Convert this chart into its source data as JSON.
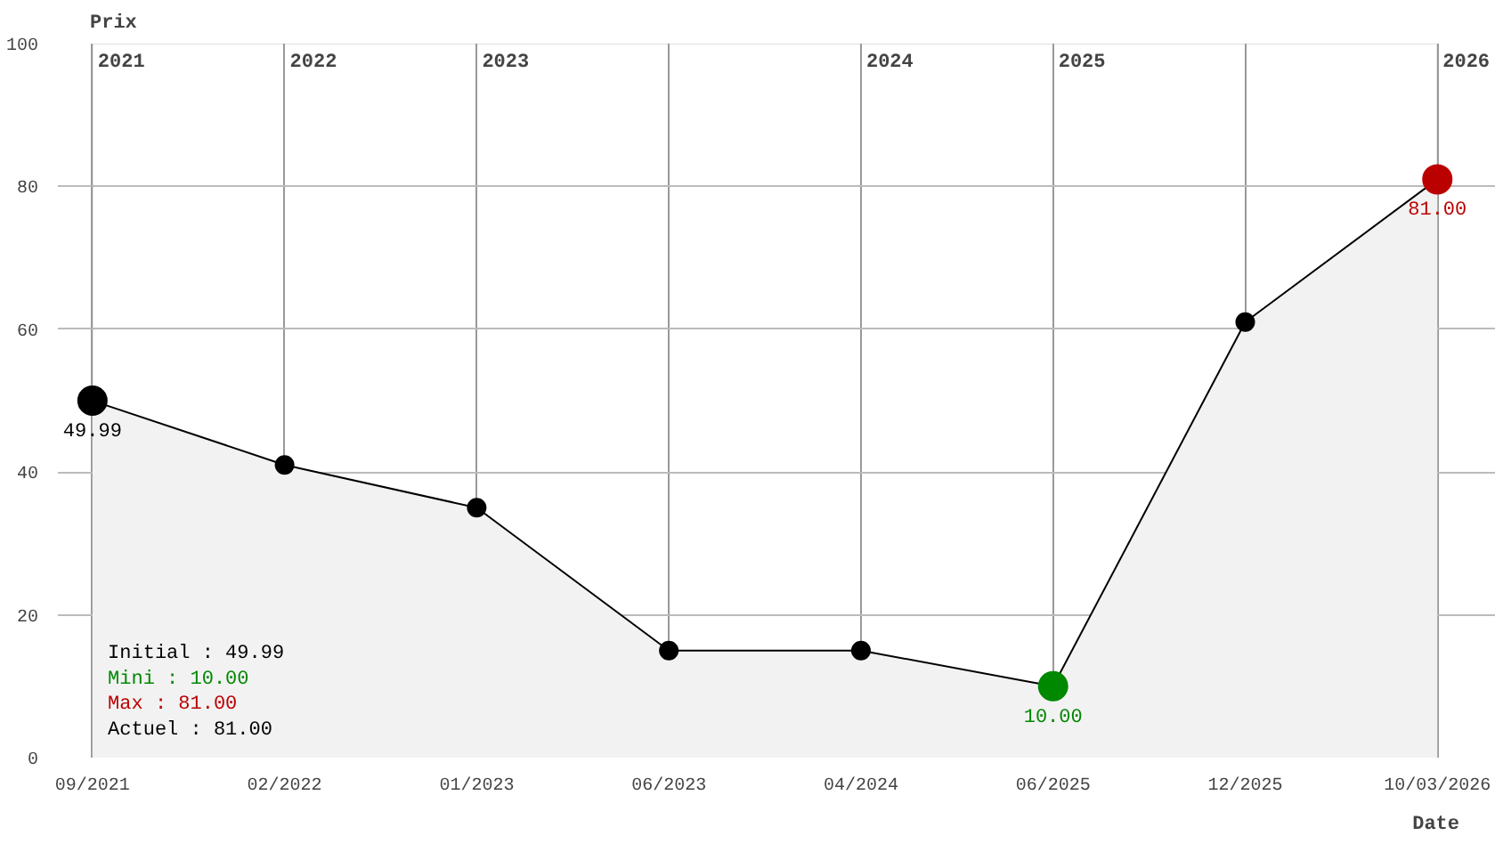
{
  "chart_data": {
    "type": "area",
    "xlabel": "Date",
    "ylabel": "Prix",
    "categories": [
      "09/2021",
      "02/2022",
      "01/2023",
      "06/2023",
      "04/2024",
      "06/2025",
      "12/2025",
      "10/03/2026"
    ],
    "series": [
      {
        "color": "#f2f2f2",
        "values": [
          49.99,
          41,
          35,
          15,
          15,
          10,
          61,
          81
        ],
        "colors": [
          "#000000",
          "#000000",
          "#000000",
          "#000000",
          "#000000",
          "#008800",
          "#000000",
          "#bb0000"
        ],
        "value_labels": [
          "49.99",
          null,
          null,
          null,
          null,
          "10.00",
          null,
          "81.00"
        ]
      }
    ],
    "ylim": [
      0,
      100
    ],
    "yticks": [
      0,
      20,
      40,
      60,
      80,
      100
    ],
    "grid": true,
    "marker": "circle",
    "line_style": "solid",
    "annotations": [
      "Initial : 49.99",
      "Mini : 10.00",
      "Max : 81.00",
      "Actuel : 81.00",
      "2021",
      "2022",
      "2023",
      "2024",
      "2025",
      "2026"
    ]
  }
}
